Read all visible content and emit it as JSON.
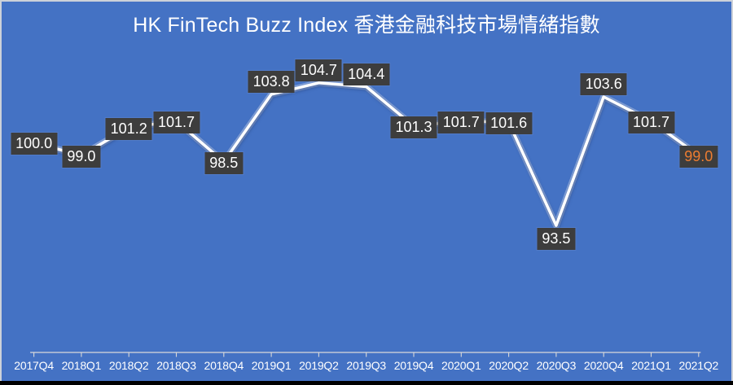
{
  "title": "HK FinTech Buzz Index 香港金融科技市場情緒指數",
  "chart_data": {
    "type": "line",
    "title": "HK FinTech Buzz Index 香港金融科技市場情緒指數",
    "categories": [
      "2017Q4",
      "2018Q1",
      "2018Q2",
      "2018Q3",
      "2018Q4",
      "2019Q1",
      "2019Q2",
      "2019Q3",
      "2019Q4",
      "2020Q1",
      "2020Q2",
      "2020Q3",
      "2020Q4",
      "2021Q1",
      "2021Q2"
    ],
    "series": [
      {
        "name": "HK FinTech Buzz Index",
        "values": [
          100.0,
          99.0,
          101.2,
          101.7,
          98.5,
          103.8,
          104.7,
          104.4,
          101.3,
          101.7,
          101.6,
          93.5,
          103.6,
          101.7,
          99.0
        ]
      }
    ],
    "data_labels": [
      "100.0",
      "99.0",
      "101.2",
      "101.7",
      "98.5",
      "103.8",
      "104.7",
      "104.4",
      "101.3",
      "101.7",
      "101.6",
      "93.5",
      "103.6",
      "101.7",
      "99.0"
    ],
    "label_placement": [
      "center",
      "center",
      "center",
      "center",
      "center",
      "above",
      "above",
      "above",
      "center",
      "center",
      "center",
      "below",
      "above",
      "center",
      "center"
    ],
    "highlight_last_label": true,
    "xlabel": "",
    "ylabel": "",
    "ylim": [
      92,
      106
    ],
    "legend": "none",
    "gridlines": false,
    "colors": {
      "background": "#4472C4",
      "line": "#FFFFFF",
      "label_box": "#3D3D3D",
      "label_text": "#FFFFFF",
      "last_label_text": "#ED7D31",
      "axis": "#D9D9D9",
      "title_text": "#FFFFFF",
      "axis_label_text": "#FFFFFF"
    }
  }
}
